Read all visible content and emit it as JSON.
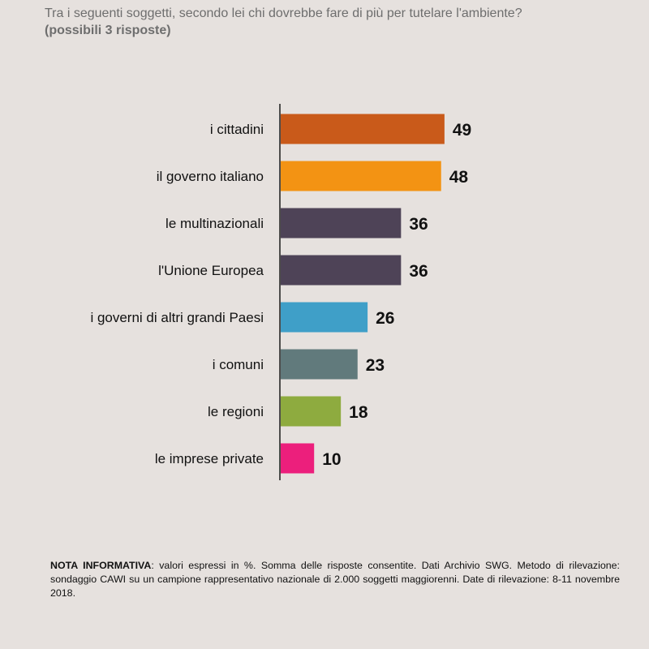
{
  "header": {
    "question": "Tra i seguenti soggetti, secondo lei chi dovrebbe fare di più per tutelare l'ambiente?",
    "subtitle": "(possibili 3 risposte)"
  },
  "chart_data": {
    "type": "bar",
    "orientation": "horizontal",
    "categories": [
      "i cittadini",
      "il governo italiano",
      "le multinazionali",
      "l'Unione Europea",
      "i governi di altri grandi Paesi",
      "i comuni",
      "le regioni",
      "le imprese private"
    ],
    "values": [
      49,
      48,
      36,
      36,
      26,
      23,
      18,
      10
    ],
    "colors": [
      "#c95a1a",
      "#f39313",
      "#4e4357",
      "#4e4357",
      "#3f9fc8",
      "#617a7c",
      "#8eab3f",
      "#ec1f7c"
    ],
    "xlim": [
      0,
      100
    ],
    "grid": false,
    "legend": "none"
  },
  "note": {
    "label": "NOTA INFORMATIVA",
    "text": ": valori espressi in %. Somma delle risposte consentite. Dati Archivio SWG. Metodo di rilevazione: sondaggio CAWI su un campione rappresentativo nazionale di 2.000 soggetti maggiorenni. Date di rilevazione: 8-11 novembre 2018."
  }
}
